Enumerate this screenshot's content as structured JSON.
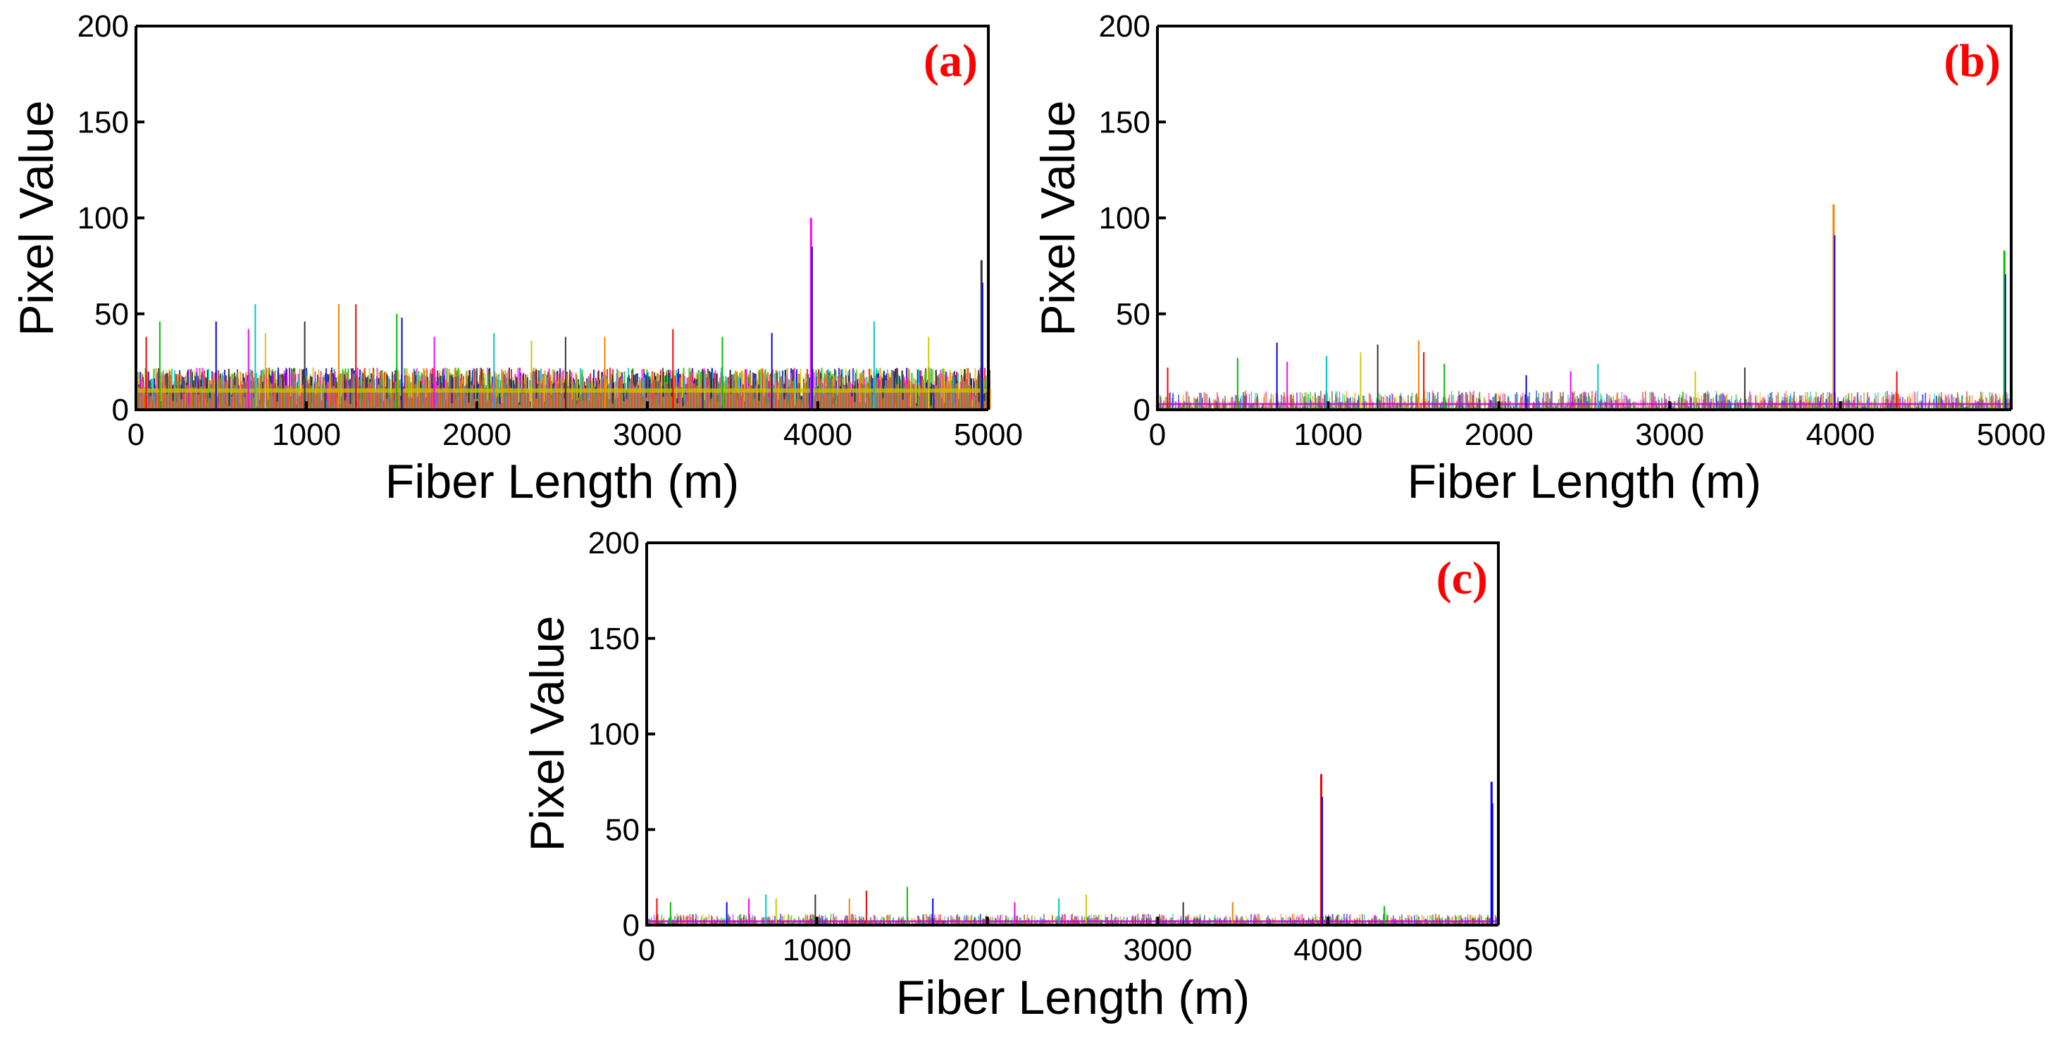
{
  "chart_data": [
    {
      "type": "line",
      "panel_label": "(a)",
      "xlabel": "Fiber Length (m)",
      "ylabel": "Pixel Value",
      "xlim": [
        0,
        5000
      ],
      "ylim": [
        0,
        200
      ],
      "xticks": [
        "0",
        "1000",
        "2000",
        "3000",
        "4000",
        "5000"
      ],
      "yticks": [
        "0",
        "50",
        "100",
        "150",
        "200"
      ],
      "noise_band": [
        0,
        22
      ],
      "baseline": 10,
      "peaks": [
        {
          "x": 60,
          "y": 38
        },
        {
          "x": 140,
          "y": 46
        },
        {
          "x": 470,
          "y": 46
        },
        {
          "x": 660,
          "y": 42
        },
        {
          "x": 700,
          "y": 55
        },
        {
          "x": 760,
          "y": 40
        },
        {
          "x": 990,
          "y": 46
        },
        {
          "x": 1190,
          "y": 55
        },
        {
          "x": 1290,
          "y": 55
        },
        {
          "x": 1530,
          "y": 50
        },
        {
          "x": 1560,
          "y": 48
        },
        {
          "x": 1750,
          "y": 38
        },
        {
          "x": 2100,
          "y": 40
        },
        {
          "x": 2320,
          "y": 36
        },
        {
          "x": 2520,
          "y": 38
        },
        {
          "x": 2750,
          "y": 38
        },
        {
          "x": 3150,
          "y": 42
        },
        {
          "x": 3440,
          "y": 38
        },
        {
          "x": 3730,
          "y": 40
        },
        {
          "x": 3960,
          "y": 100
        },
        {
          "x": 4330,
          "y": 46
        },
        {
          "x": 4650,
          "y": 38
        },
        {
          "x": 4960,
          "y": 78
        }
      ]
    },
    {
      "type": "line",
      "panel_label": "(b)",
      "xlabel": "Fiber Length (m)",
      "ylabel": "Pixel Value",
      "xlim": [
        0,
        5000
      ],
      "ylim": [
        0,
        200
      ],
      "xticks": [
        "0",
        "1000",
        "2000",
        "3000",
        "4000",
        "5000"
      ],
      "yticks": [
        "0",
        "50",
        "100",
        "150",
        "200"
      ],
      "noise_band": [
        0,
        10
      ],
      "baseline": 3,
      "peaks": [
        {
          "x": 60,
          "y": 22
        },
        {
          "x": 470,
          "y": 27
        },
        {
          "x": 700,
          "y": 35
        },
        {
          "x": 760,
          "y": 25
        },
        {
          "x": 990,
          "y": 28
        },
        {
          "x": 1190,
          "y": 30
        },
        {
          "x": 1290,
          "y": 34
        },
        {
          "x": 1530,
          "y": 36
        },
        {
          "x": 1560,
          "y": 30
        },
        {
          "x": 1680,
          "y": 24
        },
        {
          "x": 2160,
          "y": 18
        },
        {
          "x": 2420,
          "y": 20
        },
        {
          "x": 2580,
          "y": 24
        },
        {
          "x": 3150,
          "y": 20
        },
        {
          "x": 3440,
          "y": 22
        },
        {
          "x": 3960,
          "y": 107
        },
        {
          "x": 4330,
          "y": 20
        },
        {
          "x": 4960,
          "y": 83
        }
      ]
    },
    {
      "type": "line",
      "panel_label": "(c)",
      "xlabel": "Fiber Length (m)",
      "ylabel": "Pixel Value",
      "xlim": [
        0,
        5000
      ],
      "ylim": [
        0,
        200
      ],
      "xticks": [
        "0",
        "1000",
        "2000",
        "3000",
        "4000",
        "5000"
      ],
      "yticks": [
        "0",
        "50",
        "100",
        "150",
        "200"
      ],
      "noise_band": [
        0,
        6
      ],
      "baseline": 2,
      "peaks": [
        {
          "x": 60,
          "y": 14
        },
        {
          "x": 140,
          "y": 12
        },
        {
          "x": 470,
          "y": 12
        },
        {
          "x": 600,
          "y": 14
        },
        {
          "x": 700,
          "y": 16
        },
        {
          "x": 760,
          "y": 14
        },
        {
          "x": 990,
          "y": 16
        },
        {
          "x": 1190,
          "y": 14
        },
        {
          "x": 1290,
          "y": 18
        },
        {
          "x": 1530,
          "y": 20
        },
        {
          "x": 1680,
          "y": 14
        },
        {
          "x": 2160,
          "y": 12
        },
        {
          "x": 2420,
          "y": 14
        },
        {
          "x": 2580,
          "y": 16
        },
        {
          "x": 3150,
          "y": 12
        },
        {
          "x": 3440,
          "y": 12
        },
        {
          "x": 3960,
          "y": 79
        },
        {
          "x": 4330,
          "y": 10
        },
        {
          "x": 4960,
          "y": 75
        }
      ]
    }
  ],
  "colors": {
    "series": [
      "#ff0000",
      "#00c000",
      "#0000ff",
      "#ff00ff",
      "#00c8c8",
      "#d4c800",
      "#333333",
      "#ff7f00"
    ],
    "panel_letter": "#ff0000"
  }
}
